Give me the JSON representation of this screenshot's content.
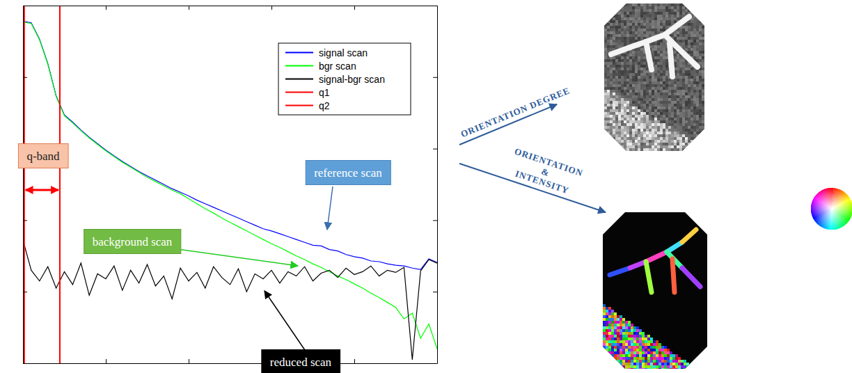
{
  "chart_data": {
    "type": "line",
    "x": [
      0,
      20,
      40,
      60,
      80,
      100,
      120,
      140,
      160,
      180,
      200,
      220,
      240,
      260,
      280,
      300,
      320,
      340,
      360,
      380,
      400,
      420,
      440,
      460,
      480,
      500,
      520,
      540,
      560,
      580,
      600,
      620,
      640,
      660,
      680,
      700,
      720,
      740,
      760,
      780,
      800,
      820,
      840,
      860,
      880,
      900,
      920,
      940,
      960,
      980,
      1000
    ],
    "xlim": [
      0,
      1000
    ],
    "ylim": [
      0,
      5
    ],
    "xticks": [
      0,
      200,
      400,
      600,
      800,
      1000
    ],
    "yticks": [
      0,
      1,
      2,
      3,
      4,
      5
    ],
    "tick_labels": false,
    "legend": "upper right",
    "series": [
      {
        "name": "signal scan",
        "color": "#0000ff",
        "values": [
          4.78,
          4.76,
          4.53,
          4.19,
          3.74,
          3.47,
          3.37,
          3.26,
          3.16,
          3.07,
          2.98,
          2.9,
          2.82,
          2.75,
          2.68,
          2.62,
          2.56,
          2.5,
          2.44,
          2.39,
          2.34,
          2.28,
          2.23,
          2.18,
          2.13,
          2.08,
          2.03,
          1.98,
          1.93,
          1.88,
          1.85,
          1.81,
          1.77,
          1.73,
          1.69,
          1.65,
          1.64,
          1.59,
          1.57,
          1.52,
          1.49,
          1.47,
          1.43,
          1.42,
          1.39,
          1.37,
          1.36,
          1.33,
          1.31,
          1.46,
          1.41
        ]
      },
      {
        "name": "bgr scan",
        "color": "#00ff00",
        "values": [
          4.77,
          4.75,
          4.52,
          4.18,
          3.73,
          3.46,
          3.36,
          3.25,
          3.15,
          3.06,
          2.97,
          2.89,
          2.81,
          2.74,
          2.67,
          2.6,
          2.54,
          2.48,
          2.42,
          2.37,
          2.3,
          2.23,
          2.16,
          2.1,
          2.03,
          1.97,
          1.91,
          1.85,
          1.79,
          1.73,
          1.67,
          1.62,
          1.56,
          1.5,
          1.45,
          1.39,
          1.34,
          1.28,
          1.22,
          1.17,
          1.11,
          1.05,
          0.98,
          0.92,
          0.85,
          0.78,
          0.62,
          0.7,
          0.35,
          0.55,
          0.2
        ]
      },
      {
        "name": "signal-bgr scan",
        "color": "#000000",
        "values": [
          1.72,
          1.3,
          1.15,
          1.35,
          1.05,
          1.28,
          1.1,
          1.4,
          0.95,
          1.25,
          1.18,
          1.36,
          1.02,
          1.3,
          1.12,
          1.38,
          1.08,
          1.22,
          0.9,
          1.33,
          1.15,
          1.27,
          1.05,
          1.35,
          1.2,
          1.1,
          1.32,
          1.0,
          1.25,
          1.18,
          1.3,
          1.12,
          1.28,
          1.22,
          1.35,
          1.15,
          1.26,
          1.3,
          1.2,
          1.33,
          1.24,
          1.28,
          1.36,
          1.22,
          1.3,
          1.27,
          1.34,
          0.05,
          1.29,
          1.45,
          1.4
        ]
      },
      {
        "name": "q1",
        "color": "#ff0000",
        "type": "vline",
        "x": [
          3
        ]
      },
      {
        "name": "q2",
        "color": "#ff0000",
        "type": "vline",
        "x": [
          89
        ]
      }
    ],
    "annotations": [
      "q-band",
      "reference scan",
      "background scan",
      "reduced scan"
    ]
  },
  "outputs": [
    "ORIENTATION DEGREE",
    "ORIENTATION & INTENSITY"
  ]
}
